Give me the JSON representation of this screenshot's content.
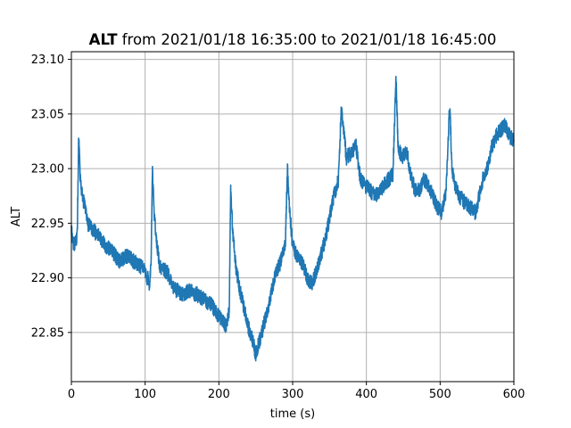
{
  "chart_data": {
    "type": "line",
    "title_bold": "ALT",
    "title_rest": " from 2021/01/18 16:35:00 to 2021/01/18 16:45:00",
    "xlabel": "time (s)",
    "ylabel": "ALT",
    "xlim": [
      0,
      600
    ],
    "ylim": [
      22.805,
      23.107
    ],
    "grid": true,
    "x_ticks": [
      0,
      100,
      200,
      300,
      400,
      500,
      600
    ],
    "y_ticks": [
      22.85,
      22.9,
      22.95,
      23.0,
      23.05,
      23.1
    ],
    "x_tick_labels": [
      "0",
      "100",
      "200",
      "300",
      "400",
      "500",
      "600"
    ],
    "y_tick_labels": [
      "22.85",
      "22.90",
      "22.95",
      "23.00",
      "23.05",
      "23.10"
    ],
    "series": [
      {
        "color": "#1f77b4",
        "anchors": [
          [
            0,
            22.945
          ],
          [
            3,
            22.93
          ],
          [
            6,
            22.935
          ],
          [
            8,
            22.94
          ],
          [
            10,
            23.03
          ],
          [
            12,
            22.99
          ],
          [
            15,
            22.975
          ],
          [
            18,
            22.965
          ],
          [
            22,
            22.95
          ],
          [
            28,
            22.945
          ],
          [
            35,
            22.94
          ],
          [
            45,
            22.93
          ],
          [
            55,
            22.925
          ],
          [
            65,
            22.915
          ],
          [
            75,
            22.92
          ],
          [
            85,
            22.915
          ],
          [
            95,
            22.91
          ],
          [
            100,
            22.905
          ],
          [
            106,
            22.895
          ],
          [
            108,
            22.915
          ],
          [
            110,
            23.0
          ],
          [
            112,
            22.96
          ],
          [
            116,
            22.93
          ],
          [
            120,
            22.91
          ],
          [
            130,
            22.905
          ],
          [
            140,
            22.89
          ],
          [
            150,
            22.885
          ],
          [
            160,
            22.888
          ],
          [
            170,
            22.885
          ],
          [
            180,
            22.88
          ],
          [
            190,
            22.875
          ],
          [
            200,
            22.865
          ],
          [
            205,
            22.86
          ],
          [
            210,
            22.855
          ],
          [
            214,
            22.87
          ],
          [
            216,
            22.98
          ],
          [
            219,
            22.94
          ],
          [
            223,
            22.91
          ],
          [
            228,
            22.89
          ],
          [
            235,
            22.87
          ],
          [
            240,
            22.855
          ],
          [
            245,
            22.845
          ],
          [
            250,
            22.83
          ],
          [
            254,
            22.84
          ],
          [
            260,
            22.855
          ],
          [
            266,
            22.87
          ],
          [
            272,
            22.89
          ],
          [
            278,
            22.905
          ],
          [
            284,
            22.915
          ],
          [
            290,
            22.93
          ],
          [
            293,
            23.0
          ],
          [
            296,
            22.96
          ],
          [
            300,
            22.93
          ],
          [
            306,
            22.92
          ],
          [
            312,
            22.915
          ],
          [
            320,
            22.9
          ],
          [
            326,
            22.895
          ],
          [
            332,
            22.905
          ],
          [
            338,
            22.92
          ],
          [
            344,
            22.935
          ],
          [
            350,
            22.955
          ],
          [
            356,
            22.975
          ],
          [
            362,
            22.99
          ],
          [
            366,
            23.055
          ],
          [
            369,
            23.035
          ],
          [
            373,
            23.01
          ],
          [
            380,
            23.015
          ],
          [
            386,
            23.02
          ],
          [
            392,
            22.99
          ],
          [
            398,
            22.985
          ],
          [
            405,
            22.98
          ],
          [
            412,
            22.975
          ],
          [
            418,
            22.98
          ],
          [
            424,
            22.985
          ],
          [
            430,
            22.99
          ],
          [
            436,
            22.995
          ],
          [
            440,
            23.085
          ],
          [
            443,
            23.02
          ],
          [
            448,
            23.01
          ],
          [
            455,
            23.015
          ],
          [
            460,
            22.995
          ],
          [
            466,
            22.98
          ],
          [
            472,
            22.98
          ],
          [
            478,
            22.99
          ],
          [
            484,
            22.985
          ],
          [
            490,
            22.975
          ],
          [
            496,
            22.965
          ],
          [
            502,
            22.96
          ],
          [
            508,
            22.98
          ],
          [
            513,
            23.06
          ],
          [
            516,
            23.0
          ],
          [
            520,
            22.985
          ],
          [
            526,
            22.975
          ],
          [
            532,
            22.97
          ],
          [
            540,
            22.965
          ],
          [
            548,
            22.96
          ],
          [
            553,
            22.975
          ],
          [
            558,
            22.99
          ],
          [
            564,
            23.0
          ],
          [
            570,
            23.02
          ],
          [
            576,
            23.03
          ],
          [
            582,
            23.035
          ],
          [
            588,
            23.04
          ],
          [
            594,
            23.03
          ],
          [
            600,
            23.025
          ]
        ]
      }
    ]
  }
}
